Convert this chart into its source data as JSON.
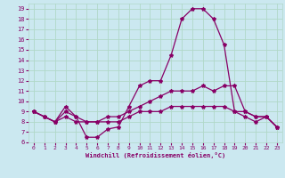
{
  "background_color": "#cbe8f0",
  "grid_color": "#b0d8c8",
  "line_color": "#880066",
  "xlim": [
    -0.5,
    23.5
  ],
  "ylim": [
    6,
    19.5
  ],
  "xticks": [
    0,
    1,
    2,
    3,
    4,
    5,
    6,
    7,
    8,
    9,
    10,
    11,
    12,
    13,
    14,
    15,
    16,
    17,
    18,
    19,
    20,
    21,
    22,
    23
  ],
  "yticks": [
    6,
    7,
    8,
    9,
    10,
    11,
    12,
    13,
    14,
    15,
    16,
    17,
    18,
    19
  ],
  "xlabel": "Windchill (Refroidissement éolien,°C)",
  "series": [
    {
      "x": [
        0,
        1,
        2,
        3,
        4,
        5,
        6,
        7,
        8,
        9,
        10,
        11,
        12,
        13,
        14,
        15,
        16,
        17,
        18,
        19,
        20,
        21,
        22,
        23
      ],
      "y": [
        9,
        8.5,
        8,
        9,
        8.5,
        6.5,
        6.5,
        7.3,
        7.5,
        9.5,
        11.5,
        12,
        12,
        14.5,
        18,
        19,
        19,
        18,
        15.5,
        9,
        8.5,
        8,
        8.5,
        7.5
      ]
    },
    {
      "x": [
        0,
        1,
        2,
        3,
        4,
        5,
        6,
        7,
        8,
        9,
        10,
        11,
        12,
        13,
        14,
        15,
        16,
        17,
        18,
        19,
        20,
        21,
        22,
        23
      ],
      "y": [
        9,
        8.5,
        8,
        8.5,
        8,
        8,
        8,
        8.5,
        8.5,
        9,
        9.5,
        10,
        10.5,
        11,
        11,
        11,
        11.5,
        11,
        11.5,
        11.5,
        9,
        8.5,
        8.5,
        7.5
      ]
    },
    {
      "x": [
        0,
        1,
        2,
        3,
        4,
        5,
        6,
        7,
        8,
        9,
        10,
        11,
        12,
        13,
        14,
        15,
        16,
        17,
        18,
        19,
        20,
        21,
        22,
        23
      ],
      "y": [
        9,
        8.5,
        8,
        9.5,
        8.5,
        8,
        8,
        8,
        8,
        8.5,
        9,
        9,
        9,
        9.5,
        9.5,
        9.5,
        9.5,
        9.5,
        9.5,
        9,
        9,
        8.5,
        8.5,
        7.5
      ]
    }
  ]
}
